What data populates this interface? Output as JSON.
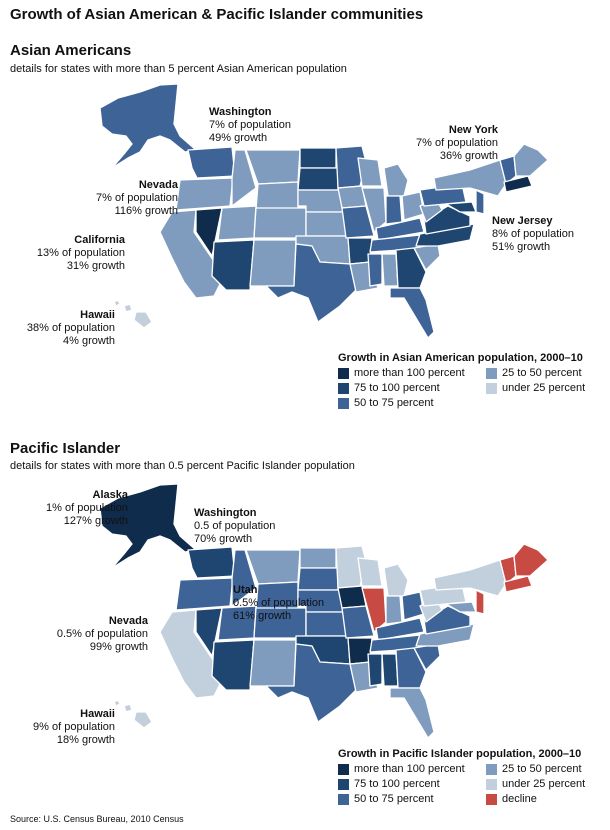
{
  "title": "Growth of Asian American & Pacific Islander communities",
  "colors": {
    "c1": "#0f2c4c",
    "c2": "#1f4670",
    "c3": "#3e6397",
    "c4": "#7f9cbf",
    "c5": "#c2cfdd",
    "decline": "#c84b43"
  },
  "asian": {
    "heading": "Asian Americans",
    "subheading": "details for states with more than 5 percent Asian American population",
    "annotations": [
      {
        "name": "Washington",
        "l1": "7% of population",
        "l2": "49% growth"
      },
      {
        "name": "New York",
        "l1": "7% of population",
        "l2": "36% growth"
      },
      {
        "name": "Nevada",
        "l1": "7% of population",
        "l2": "116% growth"
      },
      {
        "name": "New Jersey",
        "l1": "8% of population",
        "l2": "51% growth"
      },
      {
        "name": "California",
        "l1": "13% of population",
        "l2": "31% growth"
      },
      {
        "name": "Hawaii",
        "l1": "38% of population",
        "l2": "4% growth"
      }
    ],
    "legend": {
      "title": "Growth in Asian American population, 2000–10",
      "items": [
        {
          "label": "more than 100 percent",
          "color": "#0f2c4c"
        },
        {
          "label": "25 to 50 percent",
          "color": "#7f9cbf"
        },
        {
          "label": "75 to 100 percent",
          "color": "#1f4670"
        },
        {
          "label": "under 25 percent",
          "color": "#c2cfdd"
        },
        {
          "label": "50 to 75 percent",
          "color": "#3e6397"
        }
      ]
    }
  },
  "pacific": {
    "heading": "Pacific Islander",
    "subheading": "details for states with more than 0.5 percent Pacific Islander population",
    "annotations": [
      {
        "name": "Alaska",
        "l1": "1% of population",
        "l2": "127% growth"
      },
      {
        "name": "Washington",
        "l1": "0.5 of population",
        "l2": "70% growth"
      },
      {
        "name": "Utah",
        "l1": "0.5% of population",
        "l2": "61% growth"
      },
      {
        "name": "Nevada",
        "l1": "0.5% of population",
        "l2": "99% growth"
      },
      {
        "name": "Hawaii",
        "l1": "9% of population",
        "l2": "18% growth"
      }
    ],
    "legend": {
      "title": "Growth in Pacific Islander population, 2000–10",
      "items": [
        {
          "label": "more than 100 percent",
          "color": "#0f2c4c"
        },
        {
          "label": "25 to 50 percent",
          "color": "#7f9cbf"
        },
        {
          "label": "75 to 100 percent",
          "color": "#1f4670"
        },
        {
          "label": "under 25 percent",
          "color": "#c2cfdd"
        },
        {
          "label": "50 to 75 percent",
          "color": "#3e6397"
        },
        {
          "label": "decline",
          "color": "#c84b43"
        }
      ]
    }
  },
  "source": "Source: U.S. Census Bureau, 2010 Census"
}
